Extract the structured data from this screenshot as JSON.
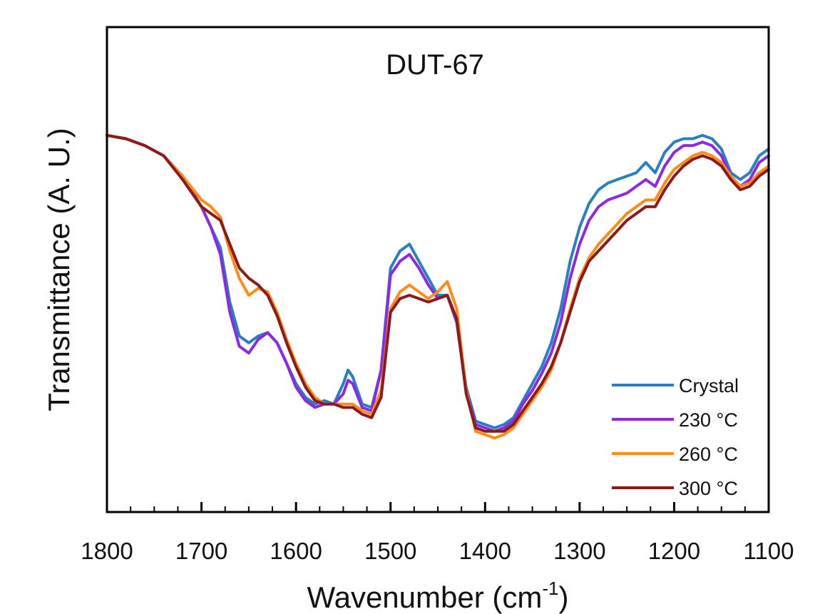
{
  "chart_data": {
    "type": "line",
    "title": "DUT-67",
    "xlabel": "Wavenumber (cm",
    "xlabel_sup": "-1",
    "xlabel_tail": ")",
    "ylabel": "Transmittance (A. U.)",
    "xlim": [
      1800,
      1100
    ],
    "x_reversed": true,
    "ylim": [
      0,
      1
    ],
    "y_tick_labels": false,
    "x_ticks": [
      1800,
      1700,
      1600,
      1500,
      1400,
      1300,
      1200,
      1100
    ],
    "x_tick_labels": [
      "1800",
      "1700",
      "1600",
      "1500",
      "1400",
      "1300",
      "1200",
      "1100"
    ],
    "x_minor_step": 25,
    "grid": false,
    "legend_position": "bottom-right",
    "series": [
      {
        "name": "Crystal",
        "color": "#2a7fc0",
        "x": [
          1800,
          1780,
          1760,
          1740,
          1720,
          1700,
          1690,
          1680,
          1670,
          1660,
          1650,
          1640,
          1630,
          1620,
          1610,
          1600,
          1590,
          1580,
          1570,
          1560,
          1550,
          1545,
          1540,
          1530,
          1520,
          1510,
          1500,
          1490,
          1480,
          1470,
          1460,
          1450,
          1440,
          1430,
          1420,
          1410,
          1400,
          1390,
          1380,
          1370,
          1360,
          1350,
          1340,
          1330,
          1320,
          1310,
          1300,
          1290,
          1280,
          1270,
          1260,
          1250,
          1240,
          1230,
          1220,
          1210,
          1200,
          1190,
          1180,
          1170,
          1160,
          1150,
          1140,
          1130,
          1120,
          1110,
          1100
        ],
        "y": [
          0.99,
          0.98,
          0.96,
          0.93,
          0.87,
          0.78,
          0.72,
          0.66,
          0.5,
          0.4,
          0.38,
          0.4,
          0.41,
          0.38,
          0.32,
          0.26,
          0.22,
          0.2,
          0.21,
          0.2,
          0.26,
          0.3,
          0.28,
          0.2,
          0.19,
          0.3,
          0.6,
          0.65,
          0.67,
          0.62,
          0.57,
          0.52,
          0.52,
          0.45,
          0.25,
          0.15,
          0.14,
          0.13,
          0.14,
          0.16,
          0.21,
          0.26,
          0.31,
          0.38,
          0.48,
          0.62,
          0.72,
          0.79,
          0.83,
          0.85,
          0.86,
          0.87,
          0.88,
          0.91,
          0.88,
          0.94,
          0.97,
          0.98,
          0.98,
          0.99,
          0.98,
          0.95,
          0.88,
          0.86,
          0.88,
          0.93,
          0.95
        ]
      },
      {
        "name": "230 °C",
        "color": "#8a2be2",
        "x": [
          1800,
          1780,
          1760,
          1740,
          1720,
          1700,
          1690,
          1680,
          1670,
          1660,
          1650,
          1640,
          1630,
          1620,
          1610,
          1600,
          1590,
          1580,
          1570,
          1560,
          1550,
          1545,
          1540,
          1530,
          1520,
          1510,
          1500,
          1490,
          1480,
          1470,
          1460,
          1450,
          1440,
          1430,
          1420,
          1410,
          1400,
          1390,
          1380,
          1370,
          1360,
          1350,
          1340,
          1330,
          1320,
          1310,
          1300,
          1290,
          1280,
          1270,
          1260,
          1250,
          1240,
          1230,
          1220,
          1210,
          1200,
          1190,
          1180,
          1170,
          1160,
          1150,
          1140,
          1130,
          1120,
          1110,
          1100
        ],
        "y": [
          0.99,
          0.98,
          0.96,
          0.93,
          0.87,
          0.78,
          0.72,
          0.64,
          0.47,
          0.37,
          0.35,
          0.39,
          0.41,
          0.38,
          0.32,
          0.25,
          0.21,
          0.19,
          0.2,
          0.2,
          0.23,
          0.27,
          0.26,
          0.19,
          0.18,
          0.3,
          0.58,
          0.62,
          0.64,
          0.6,
          0.55,
          0.51,
          0.52,
          0.44,
          0.24,
          0.14,
          0.13,
          0.12,
          0.13,
          0.15,
          0.2,
          0.24,
          0.29,
          0.35,
          0.44,
          0.57,
          0.67,
          0.74,
          0.78,
          0.8,
          0.81,
          0.82,
          0.84,
          0.86,
          0.84,
          0.9,
          0.94,
          0.96,
          0.96,
          0.97,
          0.96,
          0.93,
          0.87,
          0.84,
          0.86,
          0.91,
          0.93
        ]
      },
      {
        "name": "260 °C",
        "color": "#ff8c1a",
        "x": [
          1800,
          1780,
          1760,
          1740,
          1720,
          1700,
          1690,
          1680,
          1670,
          1660,
          1650,
          1640,
          1630,
          1620,
          1610,
          1600,
          1590,
          1580,
          1570,
          1560,
          1550,
          1545,
          1540,
          1530,
          1520,
          1510,
          1500,
          1490,
          1480,
          1470,
          1460,
          1450,
          1440,
          1430,
          1420,
          1410,
          1400,
          1390,
          1380,
          1370,
          1360,
          1350,
          1340,
          1330,
          1320,
          1310,
          1300,
          1290,
          1280,
          1270,
          1260,
          1250,
          1240,
          1230,
          1220,
          1210,
          1200,
          1190,
          1180,
          1170,
          1160,
          1150,
          1140,
          1130,
          1120,
          1110,
          1100
        ],
        "y": [
          0.99,
          0.98,
          0.96,
          0.93,
          0.87,
          0.8,
          0.78,
          0.75,
          0.65,
          0.57,
          0.52,
          0.54,
          0.53,
          0.47,
          0.39,
          0.32,
          0.26,
          0.22,
          0.2,
          0.2,
          0.2,
          0.2,
          0.2,
          0.18,
          0.17,
          0.24,
          0.48,
          0.53,
          0.55,
          0.53,
          0.51,
          0.53,
          0.56,
          0.48,
          0.24,
          0.12,
          0.11,
          0.1,
          0.11,
          0.13,
          0.17,
          0.21,
          0.25,
          0.3,
          0.38,
          0.48,
          0.57,
          0.63,
          0.67,
          0.7,
          0.73,
          0.76,
          0.78,
          0.8,
          0.8,
          0.85,
          0.89,
          0.91,
          0.93,
          0.94,
          0.93,
          0.91,
          0.87,
          0.84,
          0.85,
          0.88,
          0.9
        ]
      },
      {
        "name": "300 °C",
        "color": "#8b1a1a",
        "x": [
          1800,
          1780,
          1760,
          1740,
          1720,
          1700,
          1690,
          1680,
          1670,
          1660,
          1650,
          1640,
          1630,
          1620,
          1610,
          1600,
          1590,
          1580,
          1570,
          1560,
          1550,
          1545,
          1540,
          1530,
          1520,
          1510,
          1500,
          1490,
          1480,
          1470,
          1460,
          1450,
          1440,
          1430,
          1420,
          1410,
          1400,
          1390,
          1380,
          1370,
          1360,
          1350,
          1340,
          1330,
          1320,
          1310,
          1300,
          1290,
          1280,
          1270,
          1260,
          1250,
          1240,
          1230,
          1220,
          1210,
          1200,
          1190,
          1180,
          1170,
          1160,
          1150,
          1140,
          1130,
          1120,
          1110,
          1100
        ],
        "y": [
          0.99,
          0.98,
          0.96,
          0.93,
          0.86,
          0.78,
          0.76,
          0.74,
          0.67,
          0.6,
          0.57,
          0.55,
          0.52,
          0.46,
          0.38,
          0.31,
          0.25,
          0.21,
          0.2,
          0.2,
          0.19,
          0.19,
          0.19,
          0.17,
          0.16,
          0.22,
          0.47,
          0.51,
          0.52,
          0.51,
          0.5,
          0.51,
          0.52,
          0.45,
          0.23,
          0.13,
          0.12,
          0.12,
          0.12,
          0.14,
          0.18,
          0.22,
          0.26,
          0.31,
          0.38,
          0.47,
          0.56,
          0.62,
          0.65,
          0.68,
          0.71,
          0.74,
          0.76,
          0.78,
          0.78,
          0.83,
          0.87,
          0.9,
          0.92,
          0.93,
          0.92,
          0.9,
          0.86,
          0.83,
          0.84,
          0.87,
          0.89
        ]
      }
    ]
  }
}
